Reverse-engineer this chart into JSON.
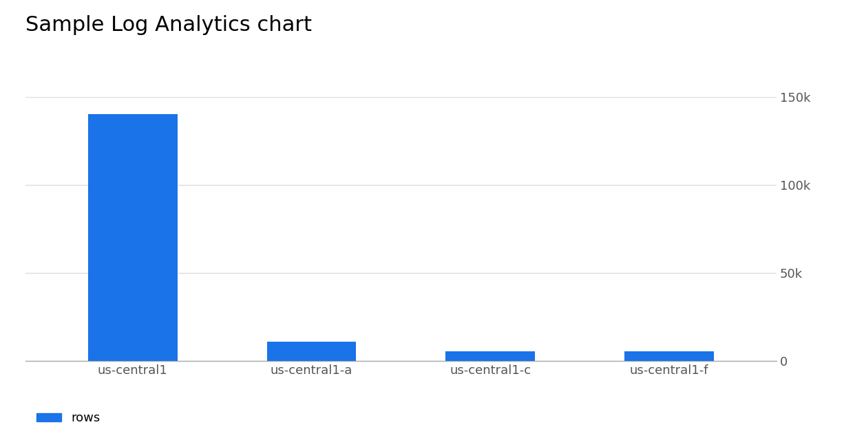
{
  "title": "Sample Log Analytics chart",
  "categories": [
    "us-central1",
    "us-central1-a",
    "us-central1-c",
    "us-central1-f"
  ],
  "values": [
    140000,
    11000,
    5500,
    5500
  ],
  "bar_color": "#1a73e8",
  "ylim": [
    0,
    150000
  ],
  "yticks": [
    0,
    50000,
    100000,
    150000
  ],
  "ytick_labels": [
    "0",
    "50k",
    "100k",
    "150k"
  ],
  "legend_label": "rows",
  "legend_color": "#1a73e8",
  "title_fontsize": 22,
  "tick_fontsize": 13,
  "legend_fontsize": 13,
  "background_color": "#ffffff",
  "grid_color": "#dddddd",
  "axis_color": "#aaaaaa",
  "bar_width": 0.5
}
